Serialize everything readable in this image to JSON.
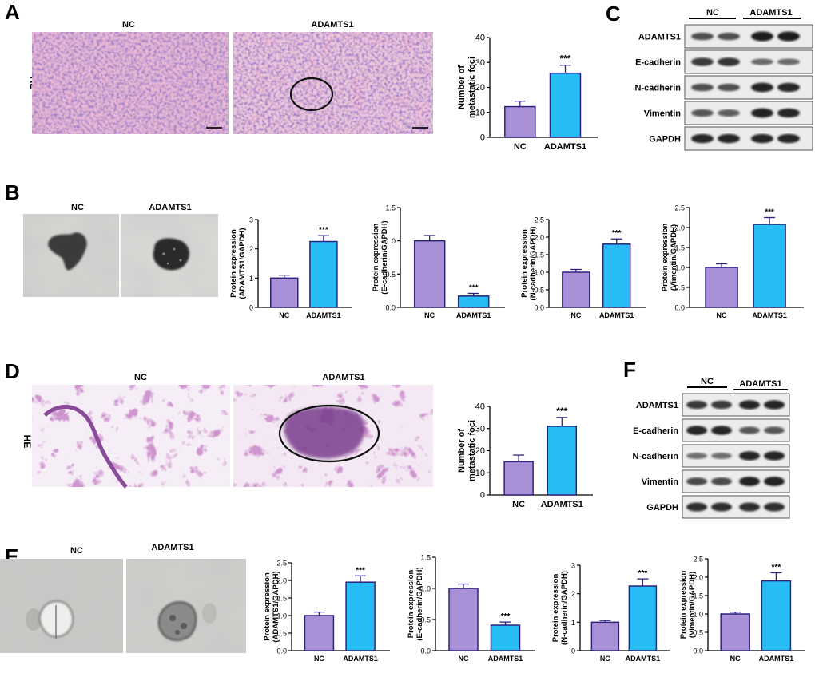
{
  "panel_letters": [
    "A",
    "B",
    "C",
    "D",
    "E",
    "F"
  ],
  "panel_A": {
    "images": [
      {
        "label": "NC"
      },
      {
        "label": "ADAMTS1"
      }
    ],
    "stain_label": "HE"
  },
  "panel_B": {
    "photo_labels": [
      "NC",
      "ADAMTS1"
    ]
  },
  "panel_C": {
    "group_labels": [
      "NC",
      "ADAMTS1"
    ],
    "rows": [
      "ADAMTS1",
      "E-cadherin",
      "N-cadherin",
      "Vimentin",
      "GAPDH"
    ],
    "band_intensity": [
      [
        0.55,
        0.55,
        0.95,
        0.95
      ],
      [
        0.7,
        0.75,
        0.35,
        0.35
      ],
      [
        0.55,
        0.55,
        0.9,
        0.85
      ],
      [
        0.5,
        0.45,
        0.9,
        0.85
      ],
      [
        0.85,
        0.85,
        0.85,
        0.85
      ]
    ]
  },
  "panel_D": {
    "images": [
      {
        "label": "NC"
      },
      {
        "label": "ADAMTS1"
      }
    ],
    "stain_label": "HE"
  },
  "panel_E": {
    "photo_labels": [
      "NC",
      "ADAMTS1"
    ]
  },
  "panel_F": {
    "group_labels": [
      "NC",
      "ADAMTS1"
    ],
    "rows": [
      "ADAMTS1",
      "E-cadherin",
      "N-cadherin",
      "Vimentin",
      "GAPDH"
    ],
    "band_intensity": [
      [
        0.7,
        0.7,
        0.85,
        0.85
      ],
      [
        0.85,
        0.85,
        0.5,
        0.5
      ],
      [
        0.3,
        0.3,
        0.85,
        0.85
      ],
      [
        0.6,
        0.6,
        0.9,
        0.9
      ],
      [
        0.8,
        0.8,
        0.8,
        0.8
      ]
    ]
  },
  "colors": {
    "nc_bar": "#a98fd6",
    "adamts1_bar": "#27bdf4",
    "bar_edge": "#2e2280"
  },
  "chart_data": [
    {
      "id": "A-foci",
      "type": "bar",
      "categories": [
        "NC",
        "ADAMTS1"
      ],
      "values": [
        12.3,
        25.7
      ],
      "errors": [
        2.2,
        3.2
      ],
      "ylabel": "Number of metastatic foci",
      "ylim": [
        0,
        40
      ],
      "yticks": [
        "0",
        "10",
        "20",
        "30",
        "40"
      ],
      "significance": "***"
    },
    {
      "id": "B-adamts1",
      "type": "bar",
      "categories": [
        "NC",
        "ADAMTS1"
      ],
      "values": [
        1.0,
        2.25
      ],
      "errors": [
        0.1,
        0.2
      ],
      "ylabel": "Protein expression (ADAMTS1/GAPDH)",
      "ylim": [
        0,
        3
      ],
      "yticks": [
        "0",
        "1",
        "2",
        "3"
      ],
      "significance": "***"
    },
    {
      "id": "B-ecad",
      "type": "bar",
      "categories": [
        "NC",
        "ADAMTS1"
      ],
      "values": [
        1.0,
        0.17
      ],
      "errors": [
        0.08,
        0.04
      ],
      "ylabel": "Protein expression (E-cadherin/GAPDH)",
      "ylim": [
        0,
        1.5
      ],
      "yticks": [
        "0.0",
        "0.5",
        "1.0",
        "1.5"
      ],
      "significance": "***"
    },
    {
      "id": "B-ncad",
      "type": "bar",
      "categories": [
        "NC",
        "ADAMTS1"
      ],
      "values": [
        1.0,
        1.8
      ],
      "errors": [
        0.08,
        0.15
      ],
      "ylabel": "Protein expression (N-cadherin/GAPDH)",
      "ylim": [
        0,
        2.5
      ],
      "yticks": [
        "0.0",
        "0.5",
        "1.0",
        "1.5",
        "2.0",
        "2.5"
      ],
      "significance": "***"
    },
    {
      "id": "B-vim",
      "type": "bar",
      "categories": [
        "NC",
        "ADAMTS1"
      ],
      "values": [
        1.0,
        2.08
      ],
      "errors": [
        0.09,
        0.17
      ],
      "ylabel": "Protein expression (Vimentin/GAPDH)",
      "ylim": [
        0,
        2.5
      ],
      "yticks": [
        "0.0",
        "0.5",
        "1.0",
        "1.5",
        "2.0",
        "2.5"
      ],
      "significance": "***"
    },
    {
      "id": "D-foci",
      "type": "bar",
      "categories": [
        "NC",
        "ADAMTS1"
      ],
      "values": [
        15.0,
        31.0
      ],
      "errors": [
        3.0,
        4.0
      ],
      "ylabel": "Number of metastatic foci",
      "ylim": [
        0,
        40
      ],
      "yticks": [
        "0",
        "10",
        "20",
        "30",
        "40"
      ],
      "significance": "***"
    },
    {
      "id": "E-adamts1",
      "type": "bar",
      "categories": [
        "NC",
        "ADAMTS1"
      ],
      "values": [
        1.0,
        1.95
      ],
      "errors": [
        0.1,
        0.18
      ],
      "ylabel": "Protein expression (ADAMTS1/GAPDH)",
      "ylim": [
        0,
        2.5
      ],
      "yticks": [
        "0.0",
        "0.5",
        "1.0",
        "1.5",
        "2.0",
        "2.5"
      ],
      "significance": "***"
    },
    {
      "id": "E-ecad",
      "type": "bar",
      "categories": [
        "NC",
        "ADAMTS1"
      ],
      "values": [
        1.0,
        0.41
      ],
      "errors": [
        0.07,
        0.05
      ],
      "ylabel": "Protein expression (E-cadherin/GAPDH)",
      "ylim": [
        0,
        1.5
      ],
      "yticks": [
        "0.0",
        "0.5",
        "1.0",
        "1.5"
      ],
      "significance": "***"
    },
    {
      "id": "E-ncad",
      "type": "bar",
      "categories": [
        "NC",
        "ADAMTS1"
      ],
      "values": [
        1.0,
        2.27
      ],
      "errors": [
        0.06,
        0.25
      ],
      "ylabel": "Protein expression (N-cadherin/GAPDH)",
      "ylim": [
        0,
        3
      ],
      "yticks": [
        "0",
        "1",
        "2",
        "3"
      ],
      "significance": "***"
    },
    {
      "id": "E-vim",
      "type": "bar",
      "categories": [
        "NC",
        "ADAMTS1"
      ],
      "values": [
        1.0,
        1.9
      ],
      "errors": [
        0.05,
        0.22
      ],
      "ylabel": "Protein expression (Vimentin/GAPDH)",
      "ylim": [
        0,
        2.5
      ],
      "yticks": [
        "0.0",
        "0.5",
        "1.0",
        "1.5",
        "2.0",
        "2.5"
      ],
      "significance": "***"
    }
  ]
}
